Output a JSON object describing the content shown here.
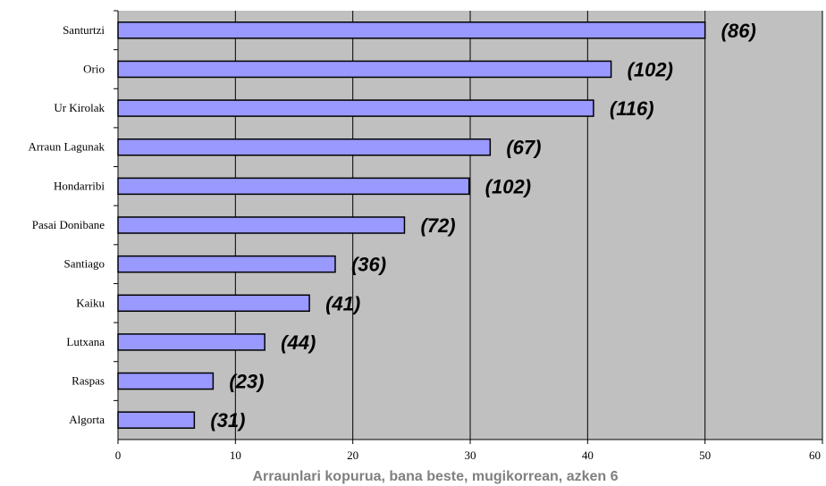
{
  "chart_data": {
    "type": "bar",
    "orientation": "horizontal",
    "categories": [
      "Santurtzi",
      "Orio",
      "Ur Kirolak",
      "Arraun Lagunak",
      "Hondarribi",
      "Pasai Donibane",
      "Santiago",
      "Kaiku",
      "Lutxana",
      "Raspas",
      "Algorta"
    ],
    "values": [
      50,
      42,
      40.5,
      31.7,
      29.9,
      24.4,
      18.5,
      16.3,
      12.5,
      8.1,
      6.5
    ],
    "data_labels": [
      "(86)",
      "(102)",
      "(116)",
      "(67)",
      "(102)",
      "(72)",
      "(36)",
      "(41)",
      "(44)",
      "(23)",
      "(31)"
    ],
    "x_ticks": [
      "0",
      "10",
      "20",
      "30",
      "40",
      "50",
      "60"
    ],
    "xlim": [
      0,
      60
    ],
    "xlabel": "Arraunlari kopurua, bana beste, mugikorrean, azken 6",
    "grid": true,
    "colors": {
      "plot_bg": "#c0c0c0",
      "bar_fill": "#9999ff",
      "bar_stroke": "#000000",
      "grid": "#000000",
      "xlabel": "#808080"
    }
  }
}
